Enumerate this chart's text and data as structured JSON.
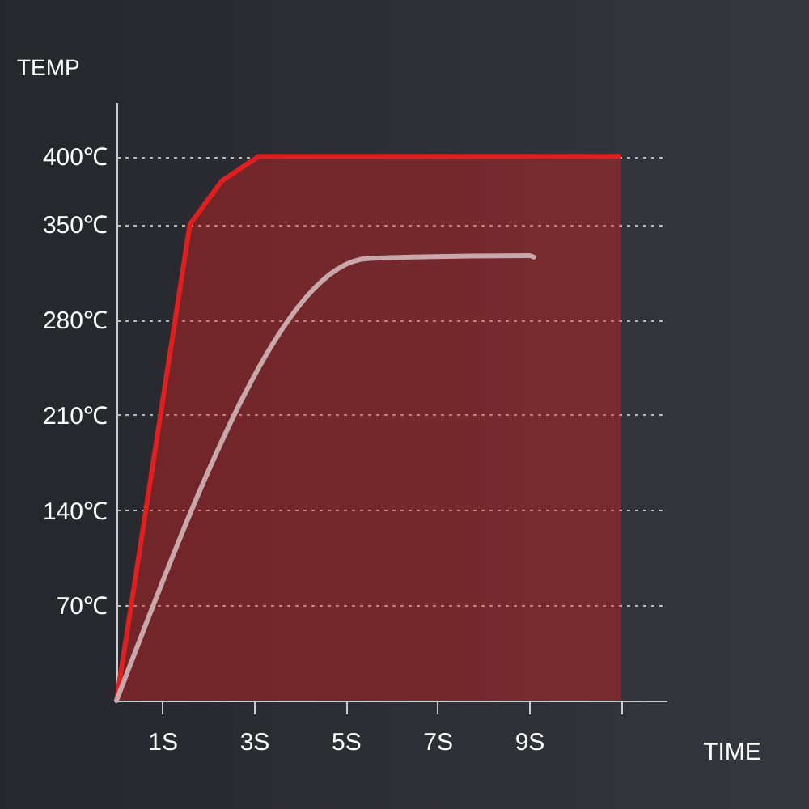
{
  "chart_data": {
    "type": "line",
    "xlabel": "TIME",
    "ylabel": "TEMP",
    "x": [
      0,
      1.6,
      2.3,
      3.1,
      11
    ],
    "series": [
      {
        "type": "area",
        "color": "#e02020",
        "values": [
          0,
          350,
          382,
          400,
          400
        ]
      },
      {
        "color": "#c8a8aa",
        "x": [
          0,
          5.5,
          9,
          9.1
        ],
        "values": [
          0,
          325,
          327,
          326
        ]
      }
    ],
    "xlim": [
      0,
      12
    ],
    "xticks": [
      {
        "value": 1,
        "label": "1S"
      },
      {
        "value": 3,
        "label": "3S"
      },
      {
        "value": 5,
        "label": "5S"
      },
      {
        "value": 7,
        "label": "7S"
      },
      {
        "value": 9,
        "label": "9S"
      },
      {
        "value": 11,
        "label": null
      }
    ],
    "ylim": [
      0,
      440
    ],
    "yticks": [
      {
        "value": 70,
        "label": "70℃"
      },
      {
        "value": 140,
        "label": "140℃"
      },
      {
        "value": 210,
        "label": "210℃"
      },
      {
        "value": 280,
        "label": "280℃"
      },
      {
        "value": 350,
        "label": "350℃"
      },
      {
        "value": 400,
        "label": "400℃"
      }
    ],
    "grid": "y"
  }
}
